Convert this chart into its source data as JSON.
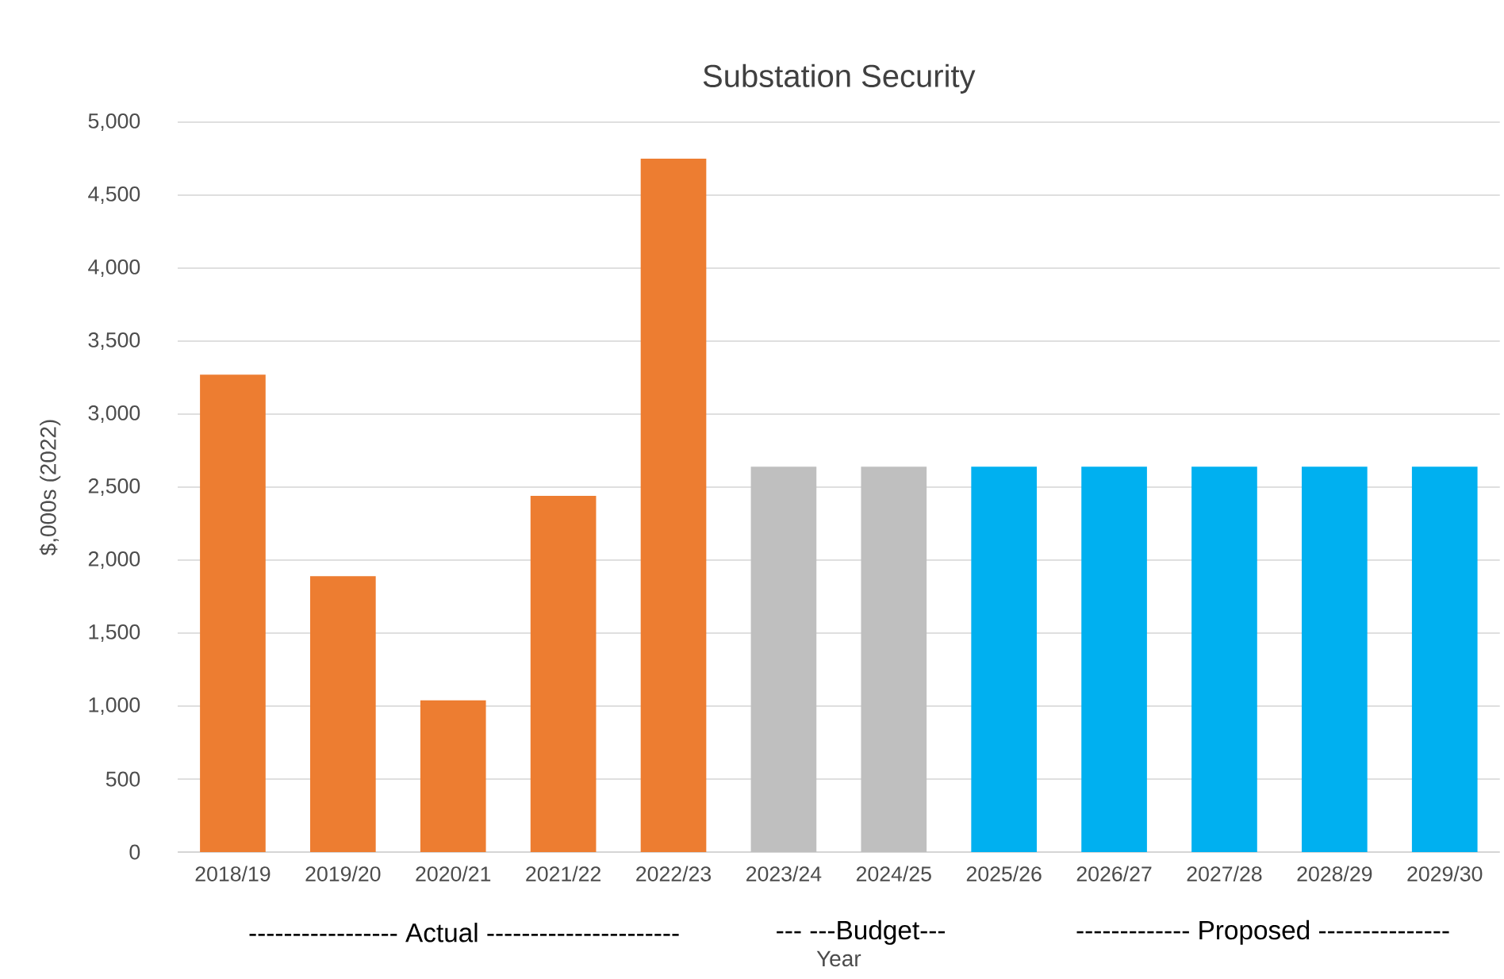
{
  "chart_data": {
    "type": "bar",
    "title": "Substation Security",
    "xlabel": "Year",
    "ylabel": "$,000s    (2022)",
    "categories": [
      "2018/19",
      "2019/20",
      "2020/21",
      "2021/22",
      "2022/23",
      "2023/24",
      "2024/25",
      "2025/26",
      "2026/27",
      "2027/28",
      "2028/29",
      "2029/30"
    ],
    "values": [
      3270,
      1890,
      1040,
      2440,
      4750,
      2640,
      2640,
      2640,
      2640,
      2640,
      2640,
      2640
    ],
    "colors": [
      "#ed7d31",
      "#ed7d31",
      "#ed7d31",
      "#ed7d31",
      "#ed7d31",
      "#bfbfbf",
      "#bfbfbf",
      "#00b0f0",
      "#00b0f0",
      "#00b0f0",
      "#00b0f0",
      "#00b0f0"
    ],
    "ylim": [
      0,
      5000
    ],
    "yticks": [
      {
        "value": 0,
        "label": "0"
      },
      {
        "value": 500,
        "label": "500"
      },
      {
        "value": 1000,
        "label": "1,000"
      },
      {
        "value": 1500,
        "label": "1,500"
      },
      {
        "value": 2000,
        "label": "2,000"
      },
      {
        "value": 2500,
        "label": "2,500"
      },
      {
        "value": 3000,
        "label": "3,000"
      },
      {
        "value": 3500,
        "label": "3,500"
      },
      {
        "value": 4000,
        "label": "4,000"
      },
      {
        "value": 4500,
        "label": "4,500"
      },
      {
        "value": 5000,
        "label": "5,000"
      }
    ],
    "grid": "y",
    "annotations": [
      "----------------- Actual ----------------------",
      "--- ---Budget---",
      "------------- Proposed ---------------"
    ]
  }
}
